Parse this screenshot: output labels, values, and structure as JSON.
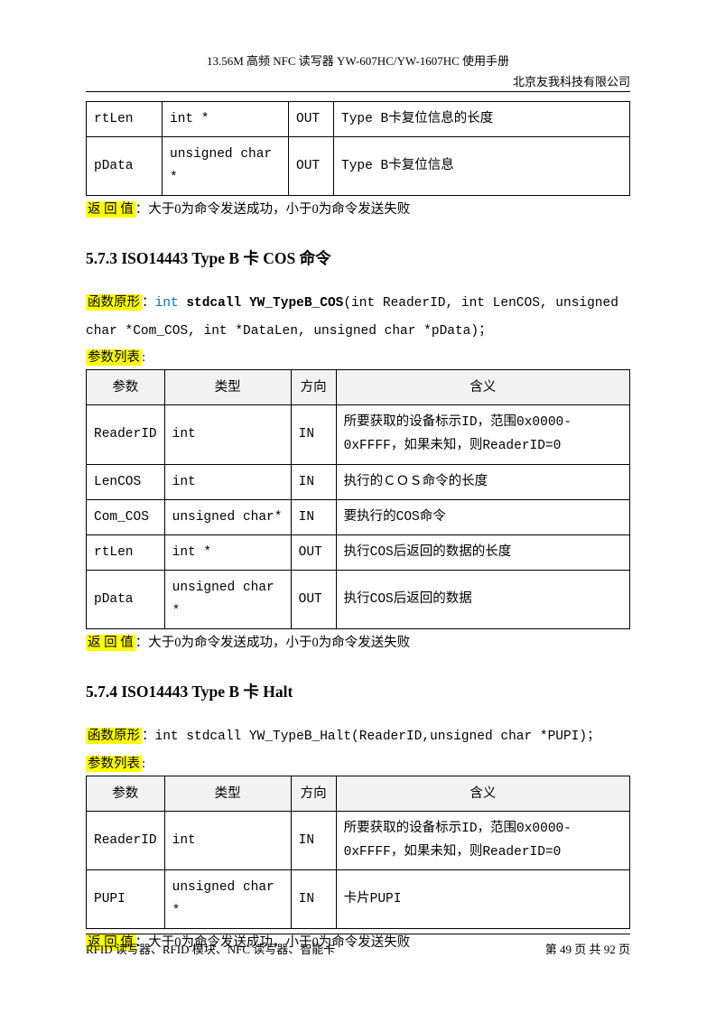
{
  "header": {
    "title": "13.56M 高频 NFC 读写器 YW-607HC/YW-1607HC 使用手册",
    "company": "北京友我科技有限公司"
  },
  "table1": {
    "rows": [
      {
        "param": "rtLen",
        "type": "int *",
        "dir": "OUT",
        "desc": "Type B卡复位信息的长度"
      },
      {
        "param": "pData",
        "type": "unsigned char *",
        "dir": "OUT",
        "desc": "Type B卡复位信息"
      }
    ]
  },
  "return_label": "返 回 值",
  "return_text": "：大于0为命令发送成功，小于0为命令发送失败",
  "section573": {
    "heading": "5.7.3 ISO14443 Type B 卡 COS 命令",
    "proto_label": "函数原形",
    "proto_code1": "int",
    "proto_code2": "stdcall",
    "proto_code3": "YW_TypeB_COS",
    "proto_rest1": "(int ReaderID, int LenCOS, unsigned",
    "proto_rest2": "char *Com_COS, int *DataLen, unsigned char *pData)；",
    "param_list_label": "参数列表",
    "table_headers": {
      "param": "参数",
      "type": "类型",
      "dir": "方向",
      "desc": "含义"
    },
    "rows": [
      {
        "param": "ReaderID",
        "type": "int",
        "dir": "IN",
        "desc": "所要获取的设备标示ID，范围0x0000-0xFFFF，如果未知，则ReaderID=0"
      },
      {
        "param": "LenCOS",
        "type": "int",
        "dir": "IN",
        "desc": "执行的ＣＯＳ命令的长度"
      },
      {
        "param": "Com_COS",
        "type": "unsigned char*",
        "dir": "IN",
        "desc": "要执行的COS命令"
      },
      {
        "param": "rtLen",
        "type": "int *",
        "dir": "OUT",
        "desc": "执行COS后返回的数据的长度"
      },
      {
        "param": "pData",
        "type": "unsigned char *",
        "dir": "OUT",
        "desc": "执行COS后返回的数据"
      }
    ]
  },
  "section574": {
    "heading": "5.7.4 ISO14443 Type B 卡 Halt",
    "proto_label": "函数原形",
    "proto_text": "：int stdcall YW_TypeB_Halt(ReaderID,unsigned char *PUPI)；",
    "param_list_label": "参数列表",
    "table_headers": {
      "param": "参数",
      "type": "类型",
      "dir": "方向",
      "desc": "含义"
    },
    "rows": [
      {
        "param": "ReaderID",
        "type": "int",
        "dir": "IN",
        "desc": "所要获取的设备标示ID，范围0x0000-0xFFFF，如果未知，则ReaderID=0"
      },
      {
        "param": "PUPI",
        "type": "unsigned char *",
        "dir": "IN",
        "desc": "卡片PUPI"
      }
    ]
  },
  "footer": {
    "left": "RFID 读写器、RFID 模块、NFC 读写器、智能卡",
    "right": "第 49 页 共 92 页"
  },
  "styling": {
    "highlight_color": "#ffff00",
    "header_bg": "#f2f2f2",
    "keyword_color": "#0070c0",
    "border_color": "#000000",
    "page_bg": "#ffffff",
    "font_size_body": 14.5,
    "font_size_heading": 17.5,
    "font_size_header": 13
  }
}
